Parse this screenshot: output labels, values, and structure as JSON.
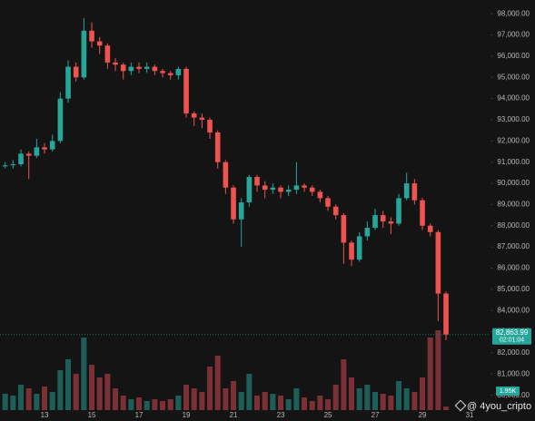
{
  "chart_data": {
    "type": "candlestick",
    "categories": [
      null,
      null,
      null,
      null,
      null,
      null,
      "13",
      null,
      null,
      null,
      null,
      null,
      "15",
      null,
      null,
      null,
      null,
      null,
      "17",
      null,
      null,
      null,
      null,
      null,
      "19",
      null,
      null,
      null,
      null,
      null,
      "21",
      null,
      null,
      null,
      null,
      null,
      "23",
      null,
      null,
      null,
      null,
      null,
      "25",
      null,
      null,
      null,
      null,
      null,
      "27",
      null,
      null,
      null,
      null,
      null,
      "29",
      null,
      null,
      null,
      null,
      null,
      "31"
    ],
    "open": [
      90700,
      90800,
      90850,
      90900,
      91400,
      91300,
      91700,
      91600,
      92000,
      94000,
      95500,
      95000,
      97200,
      96700,
      96500,
      95700,
      95600,
      95300,
      95500,
      95400,
      95500,
      95300,
      95200,
      95100,
      95400,
      93300,
      93100,
      93000,
      92400,
      91000,
      89800,
      88300,
      89100,
      90300,
      89900,
      89700,
      89800,
      89600,
      89700,
      89900,
      89800,
      89600,
      89300,
      88900,
      88500,
      87200,
      86400,
      87500,
      87900,
      88500,
      88200,
      88100,
      89300,
      90000,
      89200,
      88000,
      87700,
      84800,
      null,
      null,
      null
    ],
    "high": [
      90950,
      91000,
      91100,
      91600,
      91500,
      92100,
      91900,
      92300,
      94300,
      95800,
      95700,
      97800,
      97600,
      96900,
      96600,
      95900,
      95700,
      95700,
      95700,
      95700,
      95600,
      95400,
      95300,
      95500,
      95500,
      93400,
      93300,
      93100,
      92500,
      91100,
      89900,
      89300,
      90400,
      90400,
      90100,
      90000,
      89900,
      89900,
      91000,
      90000,
      89900,
      89700,
      89400,
      89000,
      88600,
      87300,
      87700,
      88200,
      88800,
      88700,
      88400,
      89500,
      90500,
      90200,
      89300,
      88100,
      87800,
      84900,
      null,
      null,
      null
    ],
    "low": [
      90600,
      90700,
      90700,
      90800,
      90200,
      91200,
      91400,
      91500,
      91900,
      93800,
      94800,
      94900,
      96400,
      96100,
      95400,
      95300,
      94900,
      95100,
      95200,
      95200,
      95100,
      95000,
      94900,
      94900,
      93100,
      92700,
      92600,
      92100,
      90700,
      89500,
      88100,
      87000,
      88900,
      89600,
      89300,
      89500,
      89300,
      89400,
      89500,
      89600,
      89400,
      89100,
      88700,
      88300,
      86200,
      86100,
      86300,
      87300,
      87800,
      87900,
      87600,
      88000,
      89200,
      89000,
      87800,
      87500,
      83500,
      82600,
      null,
      null,
      null
    ],
    "close": [
      90800,
      90850,
      90900,
      91400,
      91300,
      91700,
      91600,
      92000,
      94000,
      95500,
      95000,
      97200,
      96700,
      96500,
      95700,
      95600,
      95300,
      95500,
      95400,
      95500,
      95300,
      95200,
      95100,
      95400,
      93300,
      93100,
      93000,
      92400,
      91000,
      89800,
      88300,
      89100,
      90300,
      89900,
      89700,
      89800,
      89600,
      89700,
      89900,
      89800,
      89600,
      89300,
      88900,
      88500,
      87200,
      86400,
      87500,
      87900,
      88500,
      88200,
      88100,
      89300,
      90000,
      89200,
      88000,
      87700,
      84800,
      82863.99,
      null,
      null,
      null
    ],
    "volume": [
      6,
      9,
      8,
      14,
      12,
      9,
      13,
      10,
      22,
      28,
      20,
      40,
      25,
      18,
      20,
      12,
      8,
      6,
      7,
      5,
      6,
      5,
      6,
      8,
      14,
      12,
      10,
      24,
      30,
      12,
      16,
      10,
      20,
      8,
      10,
      9,
      8,
      6,
      12,
      7,
      5,
      8,
      6,
      14,
      28,
      18,
      12,
      14,
      10,
      9,
      8,
      16,
      12,
      10,
      18,
      40,
      44,
      1.95,
      null,
      null,
      null
    ],
    "up_color": "#26a69a",
    "down_color": "#ef5350",
    "volume_up_color": "#1d5f58",
    "volume_down_color": "#7a3034",
    "ylim": [
      79300,
      98650
    ],
    "yticks": [
      {
        "value": 80000,
        "label": "80,000.00"
      },
      {
        "value": 81000,
        "label": "81,000.00"
      },
      {
        "value": 82000,
        "label": "82,000.00"
      },
      {
        "value": 83000,
        "label": "83,000.00"
      },
      {
        "value": 84000,
        "label": "84,000.00"
      },
      {
        "value": 85000,
        "label": "85,000.00"
      },
      {
        "value": 86000,
        "label": "86,000.00"
      },
      {
        "value": 87000,
        "label": "87,000.00"
      },
      {
        "value": 88000,
        "label": "88,000.00"
      },
      {
        "value": 89000,
        "label": "89,000.00"
      },
      {
        "value": 90000,
        "label": "90,000.00"
      },
      {
        "value": 91000,
        "label": "91,000.00"
      },
      {
        "value": 92000,
        "label": "92,000.00"
      },
      {
        "value": 93000,
        "label": "93,000.00"
      },
      {
        "value": 94000,
        "label": "94,000.00"
      },
      {
        "value": 95000,
        "label": "95,000.00"
      },
      {
        "value": 96000,
        "label": "96,000.00"
      },
      {
        "value": 97000,
        "label": "97,000.00"
      },
      {
        "value": 98000,
        "label": "98,000.00"
      }
    ],
    "y2lim": [
      0,
      100
    ],
    "last_price": {
      "value": 82863.99,
      "label": "82,863.99"
    },
    "countdown": "02:01:04",
    "last_volume": {
      "value": 1.95,
      "label": "1.95K"
    },
    "watermark": "@ 4you_cripto"
  }
}
